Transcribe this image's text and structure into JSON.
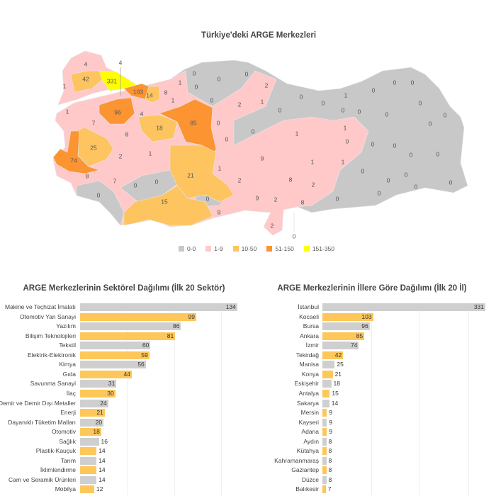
{
  "map": {
    "title": "Türkiye'deki ARGE Merkezleri",
    "legend": [
      {
        "label": "0-0",
        "color": "#c8c8c8"
      },
      {
        "label": "1-9",
        "color": "#ffc9c9"
      },
      {
        "label": "10-50",
        "color": "#fdc460"
      },
      {
        "label": "51-150",
        "color": "#fb9431"
      },
      {
        "label": "151-350",
        "color": "#ffff00"
      }
    ],
    "province_values": [
      "4",
      "4",
      "1",
      "42",
      "331",
      "103",
      "14",
      "8",
      "1",
      "1",
      "0",
      "0",
      "0",
      "0",
      "0",
      "1",
      "96",
      "4",
      "7",
      "8",
      "18",
      "85",
      "0",
      "0",
      "2",
      "2",
      "1",
      "0",
      "0",
      "0",
      "1",
      "0",
      "0",
      "0",
      "0",
      "0",
      "0",
      "0",
      "0",
      "0",
      "1",
      "1",
      "0",
      "0",
      "0",
      "0",
      "0",
      "0",
      "9",
      "1",
      "1",
      "1",
      "0",
      "0",
      "0",
      "0",
      "2",
      "8",
      "2",
      "0",
      "0",
      "0",
      "9",
      "2",
      "8",
      "9",
      "2",
      "0",
      "25",
      "2",
      "1",
      "74",
      "8",
      "7",
      "0",
      "0",
      "21",
      "0",
      "15",
      "0"
    ]
  },
  "chart_data": [
    {
      "type": "bar",
      "orientation": "horizontal",
      "title": "ARGE Merkezlerinin Sektörel Dağılımı (İlk 20 Sektör)",
      "categories": [
        "Makine ve Teçhizat İmalatı",
        "Otomotiv Yan Sanayi",
        "Yazılım",
        "Bilişim Teknolojileri",
        "Tekstil",
        "Elektrik-Elektronik",
        "Kimya",
        "Gıda",
        "Savunma Sanayi",
        "İlaç",
        "Demir ve Demir Dışı Metaller",
        "Enerji",
        "Dayanıklı Tüketim Malları",
        "Otomotiv",
        "Sağlık",
        "Plastik-Kauçuk",
        "Tarım",
        "İklimlendirme",
        "Cam ve Seramik Ürünleri",
        "Mobilya"
      ],
      "values": [
        134,
        99,
        86,
        81,
        60,
        59,
        56,
        44,
        31,
        30,
        24,
        21,
        20,
        18,
        16,
        14,
        14,
        14,
        14,
        12
      ],
      "colors": [
        "#cfcfcf",
        "#fdc75a"
      ]
    },
    {
      "type": "bar",
      "orientation": "horizontal",
      "title": "ARGE Merkezlerinin İllere Göre Dağılımı (İlk 20 İl)",
      "categories": [
        "İstanbul",
        "Kocaeli",
        "Bursa",
        "Ankara",
        "İzmir",
        "Tekirdağ",
        "Manisa",
        "Konya",
        "Eskişehir",
        "Antalya",
        "Sakarya",
        "Mersin",
        "Kayseri",
        "Adana",
        "Aydın",
        "Kütahya",
        "Kahramanmaraş",
        "Gaziantep",
        "Düzce",
        "Balıkesir"
      ],
      "values": [
        331,
        103,
        96,
        85,
        74,
        42,
        25,
        21,
        18,
        15,
        14,
        9,
        9,
        9,
        8,
        8,
        8,
        8,
        8,
        7
      ],
      "colors": [
        "#cfcfcf",
        "#fdc75a"
      ]
    }
  ]
}
